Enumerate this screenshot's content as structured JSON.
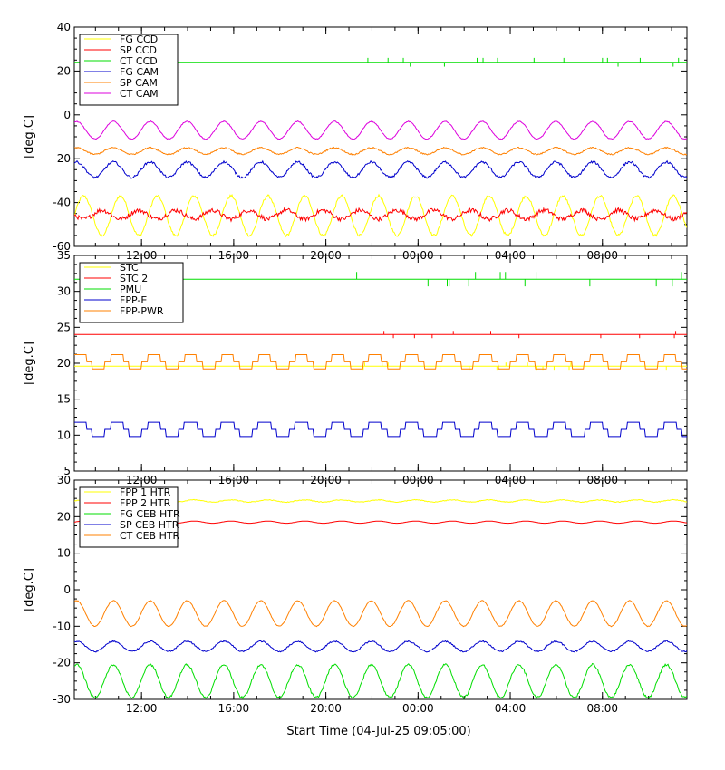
{
  "x_axis": {
    "title": "Start Time (04-Jul-25 09:05:00)",
    "xlim": [
      "2025-07-04T09:05:00",
      "2025-07-05T11:40:00"
    ],
    "ticks": [
      {
        "t": "2025-07-04T12:00:00",
        "label": "12:00"
      },
      {
        "t": "2025-07-04T16:00:00",
        "label": "16:00"
      },
      {
        "t": "2025-07-04T20:00:00",
        "label": "20:00"
      },
      {
        "t": "2025-07-05T00:00:00",
        "label": "00:00"
      },
      {
        "t": "2025-07-05T04:00:00",
        "label": "04:00"
      },
      {
        "t": "2025-07-05T08:00:00",
        "label": "08:00"
      }
    ]
  },
  "chart_data": [
    {
      "type": "line",
      "ylabel": "[deg.C]",
      "ylim": [
        -60,
        40
      ],
      "yticks": [
        -60,
        -40,
        -20,
        0,
        20,
        40
      ],
      "legend_position": "top-left",
      "series": [
        {
          "name": "FG CCD",
          "color": "#ffff00",
          "mean": -46,
          "amp": 9,
          "period_hours": 1.6,
          "phase": 0.0,
          "noise": 0.6,
          "spikes": 0
        },
        {
          "name": "SP CCD",
          "color": "#ff0000",
          "mean": -45.5,
          "amp": 2,
          "period_hours": 1.6,
          "phase": 3.14,
          "noise": 1.0,
          "spikes": 0
        },
        {
          "name": "CT CCD",
          "color": "#00dd00",
          "mean": 24,
          "amp": 0,
          "period_hours": 1.6,
          "phase": 0.0,
          "noise": 0.0,
          "spikes": 2
        },
        {
          "name": "FG CAM",
          "color": "#0000cc",
          "mean": -25,
          "amp": 3.5,
          "period_hours": 1.6,
          "phase": 1.2,
          "noise": 0.5,
          "spikes": 0
        },
        {
          "name": "SP CAM",
          "color": "#ff8000",
          "mean": -16.5,
          "amp": 1.5,
          "period_hours": 1.6,
          "phase": 1.2,
          "noise": 0.3,
          "spikes": 0
        },
        {
          "name": "CT CAM",
          "color": "#dd00dd",
          "mean": -7,
          "amp": 4,
          "period_hours": 1.6,
          "phase": 1.2,
          "noise": 0.2,
          "spikes": 0
        }
      ]
    },
    {
      "type": "line",
      "ylabel": "[deg.C]",
      "ylim": [
        5,
        35
      ],
      "yticks": [
        5,
        10,
        15,
        20,
        25,
        30,
        35
      ],
      "legend_position": "top-left",
      "series": [
        {
          "name": "STC",
          "color": "#ffff00",
          "mean": 19.6,
          "amp": 0,
          "period_hours": 1.6,
          "phase": 0.0,
          "noise": 0.0,
          "spikes": 0.5
        },
        {
          "name": "STC 2",
          "color": "#ff0000",
          "mean": 24,
          "amp": 0,
          "period_hours": 1.6,
          "phase": 0.0,
          "noise": 0.0,
          "spikes": 0.5
        },
        {
          "name": "PMU",
          "color": "#00dd00",
          "mean": 31.7,
          "amp": 0,
          "period_hours": 1.6,
          "phase": 0.0,
          "noise": 0.0,
          "spikes": 1
        },
        {
          "name": "FPP-E",
          "color": "#0000cc",
          "mean": 10.8,
          "amp": 1.1,
          "period_hours": 1.6,
          "phase": 0.6,
          "noise": 0.0,
          "spikes": 0,
          "step": 1.0
        },
        {
          "name": "FPP-PWR",
          "color": "#ff8000",
          "mean": 20.2,
          "amp": 1.0,
          "period_hours": 1.6,
          "phase": 0.6,
          "noise": 0.0,
          "spikes": 0,
          "step": 1.0
        }
      ]
    },
    {
      "type": "line",
      "ylabel": "[deg.C]",
      "ylim": [
        -30,
        30
      ],
      "yticks": [
        -30,
        -20,
        -10,
        0,
        10,
        20,
        30
      ],
      "legend_position": "top-left",
      "series": [
        {
          "name": "FPP 1 HTR",
          "color": "#ffff00",
          "mean": 24.3,
          "amp": 0.3,
          "period_hours": 1.6,
          "phase": 0.0,
          "noise": 0.1,
          "spikes": 0
        },
        {
          "name": "FPP 2 HTR",
          "color": "#ff0000",
          "mean": 18.5,
          "amp": 0.3,
          "period_hours": 1.6,
          "phase": 0.0,
          "noise": 0.0,
          "spikes": 0
        },
        {
          "name": "FG CEB HTR",
          "color": "#00dd00",
          "mean": -25,
          "amp": 4.5,
          "period_hours": 1.6,
          "phase": 1.2,
          "noise": 0.3,
          "spikes": 0
        },
        {
          "name": "SP CEB HTR",
          "color": "#0000cc",
          "mean": -15.5,
          "amp": 1.4,
          "period_hours": 1.6,
          "phase": 1.2,
          "noise": 0.2,
          "spikes": 0
        },
        {
          "name": "CT CEB HTR",
          "color": "#ff8000",
          "mean": -6.5,
          "amp": 3.5,
          "period_hours": 1.6,
          "phase": 1.2,
          "noise": 0.1,
          "spikes": 0
        }
      ]
    }
  ]
}
